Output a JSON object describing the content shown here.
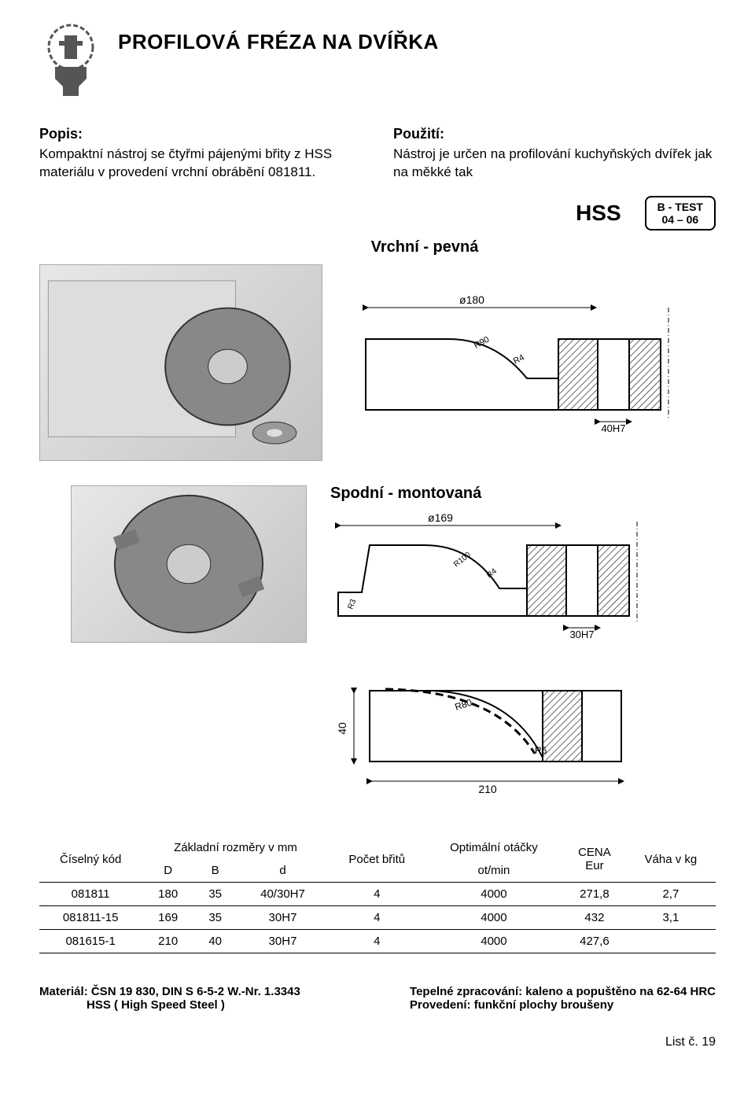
{
  "title": "PROFILOVÁ FRÉZA  NA  DVÍŘKA",
  "popis": {
    "heading": "Popis:",
    "text": "Kompaktní nástroj se čtyřmi pájenými břity z HSS materiálu v provedení vrchní obrábění 081811."
  },
  "pouziti": {
    "heading": "Použití:",
    "text": "Nástroj je určen na profilování kuchyňských dvířek jak na měkké tak"
  },
  "hss_label": "HSS",
  "badge_line1": "B - TEST",
  "badge_line2": "04 – 06",
  "variant_top": "Vrchní  - pevná",
  "variant_bottom": "Spodní  - montovaná",
  "diag_top": {
    "dia": "ø180",
    "r1": "R90",
    "r2": "R4",
    "bore": "40H7"
  },
  "diag_bottom": {
    "dia": "ø169",
    "r1": "R100",
    "r2": "R4",
    "r3": "R3",
    "bore": "30H7"
  },
  "diag_detail": {
    "h": "40",
    "r1": "R80",
    "r2": "R6",
    "w": "210"
  },
  "table": {
    "headers": {
      "code": "Číselný kód",
      "dims": "Základní rozměry v mm",
      "D": "D",
      "B": "B",
      "d": "d",
      "count": "Počet břitů",
      "rpm_top": "Optimální otáčky",
      "rpm_bot": "ot/min",
      "price_top": "CENA",
      "price_bot": "Eur",
      "weight": "Váha v kg"
    },
    "rows": [
      {
        "code": "081811",
        "D": "180",
        "B": "35",
        "d": "40/30H7",
        "count": "4",
        "rpm": "4000",
        "price": "271,8",
        "weight": "2,7"
      },
      {
        "code": "081811-15",
        "D": "169",
        "B": "35",
        "d": "30H7",
        "count": "4",
        "rpm": "4000",
        "price": "432",
        "weight": "3,1"
      },
      {
        "code": "081615-1",
        "D": "210",
        "B": "40",
        "d": "30H7",
        "count": "4",
        "rpm": "4000",
        "price": "427,6",
        "weight": ""
      }
    ]
  },
  "footer": {
    "left_line1": "Materiál: ČSN 19 830, DIN S 6-5-2 W.-Nr. 1.3343",
    "left_line2": "HSS ( High Speed Steel )",
    "right_line1": "Tepelné zpracování: kaleno a popuštěno na 62-64 HRC",
    "right_line2": "Provedení: funkční plochy broušeny"
  },
  "page_num": "List č. 19",
  "colors": {
    "hatch": "#444",
    "line": "#000"
  }
}
